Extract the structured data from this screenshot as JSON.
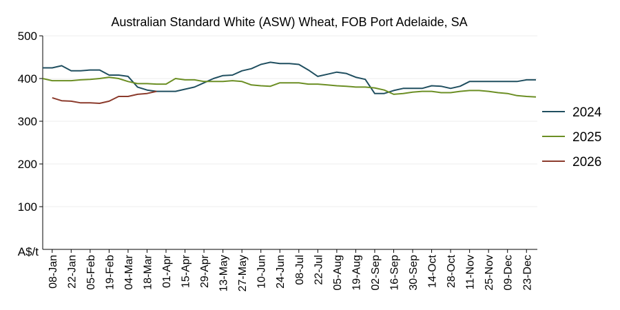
{
  "chart_data": {
    "type": "line",
    "title": "Australian Standard White (ASW) Wheat, FOB Port Adelaide, SA",
    "ylabel": "A$/t",
    "ylim": [
      0,
      500
    ],
    "yticks": [
      500,
      400,
      300,
      200,
      100
    ],
    "xlim": [
      "2024-01-01",
      "2024-12-31"
    ],
    "xtick_labels": [
      {
        "date": "2024-01-08",
        "label": "08-Jan"
      },
      {
        "date": "2024-01-22",
        "label": "22-Jan"
      },
      {
        "date": "2024-02-05",
        "label": "05-Feb"
      },
      {
        "date": "2024-02-19",
        "label": "19-Feb"
      },
      {
        "date": "2024-03-04",
        "label": "04-Mar"
      },
      {
        "date": "2024-03-18",
        "label": "18-Mar"
      },
      {
        "date": "2024-04-01",
        "label": "01-Apr"
      },
      {
        "date": "2024-04-15",
        "label": "15-Apr"
      },
      {
        "date": "2024-04-29",
        "label": "29-Apr"
      },
      {
        "date": "2024-05-13",
        "label": "13-May"
      },
      {
        "date": "2024-05-27",
        "label": "27-May"
      },
      {
        "date": "2024-06-10",
        "label": "10-Jun"
      },
      {
        "date": "2024-06-24",
        "label": "24-Jun"
      },
      {
        "date": "2024-07-08",
        "label": "08-Jul"
      },
      {
        "date": "2024-07-22",
        "label": "22-Jul"
      },
      {
        "date": "2024-08-05",
        "label": "05-Aug"
      },
      {
        "date": "2024-08-19",
        "label": "19-Aug"
      },
      {
        "date": "2024-09-02",
        "label": "02-Sep"
      },
      {
        "date": "2024-09-16",
        "label": "16-Sep"
      },
      {
        "date": "2024-09-30",
        "label": "30-Sep"
      },
      {
        "date": "2024-10-14",
        "label": "14-Oct"
      },
      {
        "date": "2024-10-28",
        "label": "28-Oct"
      },
      {
        "date": "2024-11-11",
        "label": "11-Nov"
      },
      {
        "date": "2024-11-25",
        "label": "25-Nov"
      },
      {
        "date": "2024-12-09",
        "label": "09-Dec"
      },
      {
        "date": "2024-12-23",
        "label": "23-Dec"
      }
    ],
    "legend_position": "right",
    "grid": true,
    "series": [
      {
        "name": "2024",
        "color": "#1f4e5f",
        "points": [
          [
            "2024-01-01",
            425
          ],
          [
            "2024-01-08",
            425
          ],
          [
            "2024-01-15",
            430
          ],
          [
            "2024-01-22",
            418
          ],
          [
            "2024-01-29",
            418
          ],
          [
            "2024-02-05",
            420
          ],
          [
            "2024-02-12",
            420
          ],
          [
            "2024-02-19",
            408
          ],
          [
            "2024-02-26",
            408
          ],
          [
            "2024-03-04",
            405
          ],
          [
            "2024-03-11",
            380
          ],
          [
            "2024-03-18",
            373
          ],
          [
            "2024-03-25",
            370
          ],
          [
            "2024-04-01",
            370
          ],
          [
            "2024-04-08",
            370
          ],
          [
            "2024-04-15",
            375
          ],
          [
            "2024-04-22",
            380
          ],
          [
            "2024-04-29",
            390
          ],
          [
            "2024-05-06",
            400
          ],
          [
            "2024-05-13",
            407
          ],
          [
            "2024-05-20",
            408
          ],
          [
            "2024-05-27",
            418
          ],
          [
            "2024-06-03",
            423
          ],
          [
            "2024-06-10",
            433
          ],
          [
            "2024-06-17",
            438
          ],
          [
            "2024-06-24",
            435
          ],
          [
            "2024-07-01",
            435
          ],
          [
            "2024-07-08",
            433
          ],
          [
            "2024-07-15",
            420
          ],
          [
            "2024-07-22",
            405
          ],
          [
            "2024-07-29",
            410
          ],
          [
            "2024-08-05",
            415
          ],
          [
            "2024-08-12",
            412
          ],
          [
            "2024-08-19",
            403
          ],
          [
            "2024-08-26",
            398
          ],
          [
            "2024-09-02",
            365
          ],
          [
            "2024-09-09",
            365
          ],
          [
            "2024-09-16",
            372
          ],
          [
            "2024-09-23",
            377
          ],
          [
            "2024-09-30",
            377
          ],
          [
            "2024-10-07",
            377
          ],
          [
            "2024-10-14",
            383
          ],
          [
            "2024-10-21",
            382
          ],
          [
            "2024-10-28",
            377
          ],
          [
            "2024-11-04",
            382
          ],
          [
            "2024-11-11",
            393
          ],
          [
            "2024-11-18",
            393
          ],
          [
            "2024-11-25",
            393
          ],
          [
            "2024-12-02",
            393
          ],
          [
            "2024-12-09",
            393
          ],
          [
            "2024-12-16",
            393
          ],
          [
            "2024-12-23",
            397
          ],
          [
            "2024-12-30",
            397
          ]
        ]
      },
      {
        "name": "2025",
        "color": "#6b8e23",
        "points": [
          [
            "2024-01-01",
            400
          ],
          [
            "2024-01-08",
            395
          ],
          [
            "2024-01-15",
            395
          ],
          [
            "2024-01-22",
            395
          ],
          [
            "2024-01-29",
            397
          ],
          [
            "2024-02-05",
            398
          ],
          [
            "2024-02-12",
            400
          ],
          [
            "2024-02-19",
            403
          ],
          [
            "2024-02-26",
            400
          ],
          [
            "2024-03-04",
            393
          ],
          [
            "2024-03-11",
            388
          ],
          [
            "2024-03-18",
            388
          ],
          [
            "2024-03-25",
            387
          ],
          [
            "2024-04-01",
            387
          ],
          [
            "2024-04-08",
            400
          ],
          [
            "2024-04-15",
            397
          ],
          [
            "2024-04-22",
            397
          ],
          [
            "2024-04-29",
            393
          ],
          [
            "2024-05-06",
            393
          ],
          [
            "2024-05-13",
            393
          ],
          [
            "2024-05-20",
            395
          ],
          [
            "2024-05-27",
            393
          ],
          [
            "2024-06-03",
            385
          ],
          [
            "2024-06-10",
            383
          ],
          [
            "2024-06-17",
            382
          ],
          [
            "2024-06-24",
            390
          ],
          [
            "2024-07-01",
            390
          ],
          [
            "2024-07-08",
            390
          ],
          [
            "2024-07-15",
            387
          ],
          [
            "2024-07-22",
            387
          ],
          [
            "2024-07-29",
            385
          ],
          [
            "2024-08-05",
            383
          ],
          [
            "2024-08-12",
            382
          ],
          [
            "2024-08-19",
            380
          ],
          [
            "2024-08-26",
            380
          ],
          [
            "2024-09-02",
            378
          ],
          [
            "2024-09-09",
            373
          ],
          [
            "2024-09-16",
            363
          ],
          [
            "2024-09-23",
            365
          ],
          [
            "2024-09-30",
            368
          ],
          [
            "2024-10-07",
            370
          ],
          [
            "2024-10-14",
            370
          ],
          [
            "2024-10-21",
            367
          ],
          [
            "2024-10-28",
            367
          ],
          [
            "2024-11-04",
            370
          ],
          [
            "2024-11-11",
            372
          ],
          [
            "2024-11-18",
            372
          ],
          [
            "2024-11-25",
            370
          ],
          [
            "2024-12-02",
            367
          ],
          [
            "2024-12-09",
            365
          ],
          [
            "2024-12-16",
            360
          ],
          [
            "2024-12-23",
            358
          ],
          [
            "2024-12-30",
            357
          ]
        ]
      },
      {
        "name": "2026",
        "color": "#8b3a2b",
        "points": [
          [
            "2024-01-08",
            355
          ],
          [
            "2024-01-15",
            348
          ],
          [
            "2024-01-22",
            347
          ],
          [
            "2024-01-29",
            343
          ],
          [
            "2024-02-05",
            343
          ],
          [
            "2024-02-12",
            342
          ],
          [
            "2024-02-19",
            347
          ],
          [
            "2024-02-26",
            358
          ],
          [
            "2024-03-04",
            358
          ],
          [
            "2024-03-11",
            363
          ],
          [
            "2024-03-18",
            365
          ],
          [
            "2024-03-25",
            370
          ]
        ]
      }
    ]
  }
}
